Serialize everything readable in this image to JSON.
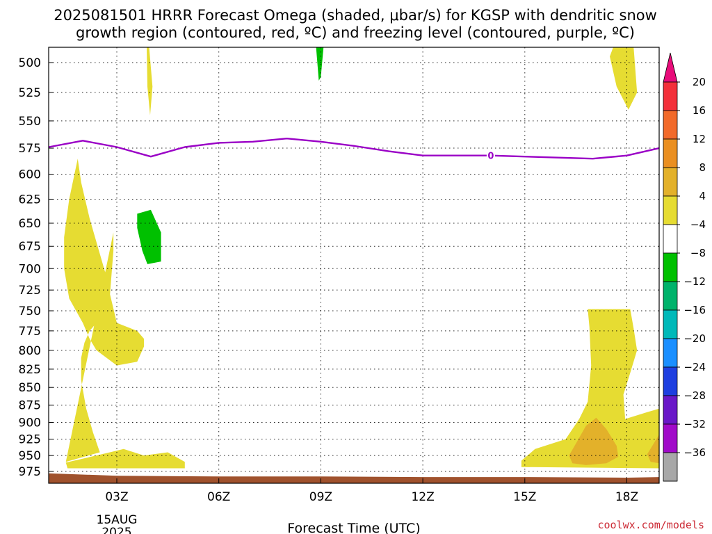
{
  "chart_data": {
    "type": "heatmap",
    "title_line1": "2025081501 HRRR Forecast Omega (shaded, μbar/s) for KGSP with dendritic snow",
    "title_line2": "growth region (contoured, red, ºC) and freezing level (contoured, purple, ºC)",
    "xlabel": "Forecast Time (UTC)",
    "x_ticks": [
      {
        "hour": 3,
        "label": "03Z"
      },
      {
        "hour": 6,
        "label": "06Z"
      },
      {
        "hour": 9,
        "label": "09Z"
      },
      {
        "hour": 12,
        "label": "12Z"
      },
      {
        "hour": 15,
        "label": "15Z"
      },
      {
        "hour": 18,
        "label": "18Z"
      }
    ],
    "date_label_line1": "15AUG",
    "date_label_line2": "2025",
    "xlim": [
      1,
      19
    ],
    "ylim": [
      970,
      485
    ],
    "y_scale": "log-pressure (inverted)",
    "y_ticks": [
      500,
      525,
      550,
      575,
      600,
      625,
      650,
      675,
      700,
      725,
      750,
      775,
      800,
      825,
      850,
      875,
      900,
      925,
      950,
      975
    ],
    "grid": true,
    "colorbar": {
      "placement": "right",
      "labels": [
        "20",
        "16",
        "12",
        "8",
        "4",
        "−4",
        "−8",
        "−12",
        "−16",
        "−20",
        "−24",
        "−28",
        "−32",
        "−36"
      ],
      "colors": [
        "#e80c7a",
        "#f3303a",
        "#f26a2a",
        "#ea8f21",
        "#e3b12a",
        "#e6dc32",
        "#ffffff",
        "#00c000",
        "#00b36b",
        "#00b9b9",
        "#1a8fff",
        "#1e3fe0",
        "#6a18c8",
        "#a10bc9",
        "#a8a8a8",
        "#000000"
      ]
    },
    "omega_regions": [
      {
        "name": "rising 4-8 left column",
        "color": "#e6dc32",
        "points": [
          [
            1.55,
            970
          ],
          [
            1.5,
            961
          ],
          [
            2.4,
            950
          ],
          [
            3.2,
            940
          ],
          [
            3.8,
            950
          ],
          [
            4.5,
            945
          ],
          [
            5,
            960
          ],
          [
            5,
            970
          ]
        ]
      },
      {
        "name": "rising 4-8 left column body",
        "color": "#e6dc32",
        "points": [
          [
            1.5,
            960
          ],
          [
            2.5,
            945
          ],
          [
            2.3,
            915
          ],
          [
            2.1,
            880
          ],
          [
            1.95,
            840
          ],
          [
            1.95,
            810
          ],
          [
            2.05,
            790
          ],
          [
            2.2,
            775
          ],
          [
            2.5,
            760
          ],
          [
            2.6,
            745
          ],
          [
            2.7,
            710
          ],
          [
            2.2,
            645
          ],
          [
            1.95,
            608
          ],
          [
            1.85,
            585
          ],
          [
            1.6,
            625
          ],
          [
            1.45,
            665
          ],
          [
            1.45,
            700
          ],
          [
            1.6,
            735
          ],
          [
            2.0,
            765
          ],
          [
            2.2,
            785
          ],
          [
            2.4,
            800
          ],
          [
            3.0,
            820
          ],
          [
            3.6,
            815
          ],
          [
            3.8,
            795
          ],
          [
            3.8,
            785
          ],
          [
            3.6,
            775
          ],
          [
            3.0,
            765
          ],
          [
            2.8,
            730
          ],
          [
            2.9,
            680
          ],
          [
            2.9,
            660
          ]
        ]
      },
      {
        "name": "rising 4-8 upper left streak",
        "color": "#e6dc32",
        "points": [
          [
            3.88,
            485
          ],
          [
            3.95,
            485
          ],
          [
            4.05,
            520
          ],
          [
            3.98,
            545
          ],
          [
            3.9,
            520
          ]
        ]
      },
      {
        "name": "rising 4-8 top right",
        "color": "#e6dc32",
        "points": [
          [
            17.6,
            485
          ],
          [
            18.2,
            485
          ],
          [
            18.3,
            525
          ],
          [
            18.05,
            540
          ],
          [
            17.7,
            520
          ],
          [
            17.5,
            495
          ]
        ]
      },
      {
        "name": "sinking -8 upper left",
        "color": "#00c000",
        "points": [
          [
            3.6,
            640
          ],
          [
            4.0,
            636
          ],
          [
            4.3,
            660
          ],
          [
            4.3,
            692
          ],
          [
            3.9,
            695
          ],
          [
            3.75,
            680
          ],
          [
            3.6,
            655
          ]
        ]
      },
      {
        "name": "sinking -8 top center",
        "color": "#00c000",
        "points": [
          [
            8.86,
            485
          ],
          [
            9.08,
            485
          ],
          [
            9.0,
            512
          ],
          [
            8.94,
            515
          ]
        ]
      },
      {
        "name": "rising 4-8 lower right",
        "color": "#e6dc32",
        "points": [
          [
            14.9,
            968
          ],
          [
            14.9,
            958
          ],
          [
            15.3,
            940
          ],
          [
            16.2,
            925
          ],
          [
            16.6,
            895
          ],
          [
            16.85,
            870
          ],
          [
            16.95,
            820
          ],
          [
            16.9,
            770
          ],
          [
            16.85,
            748
          ],
          [
            18.1,
            748
          ],
          [
            18.2,
            772
          ],
          [
            18.3,
            800
          ],
          [
            18.1,
            830
          ],
          [
            17.9,
            860
          ],
          [
            17.95,
            895
          ],
          [
            18.6,
            885
          ],
          [
            19,
            880
          ],
          [
            19,
            970
          ]
        ]
      },
      {
        "name": "rising 8-12 lower right",
        "color": "#e3b12a",
        "points": [
          [
            16.3,
            950
          ],
          [
            16.5,
            932
          ],
          [
            16.8,
            905
          ],
          [
            17.1,
            893
          ],
          [
            17.4,
            910
          ],
          [
            17.7,
            935
          ],
          [
            17.75,
            952
          ],
          [
            17.4,
            962
          ],
          [
            16.8,
            965
          ],
          [
            16.4,
            962
          ]
        ]
      },
      {
        "name": "rising 8-12 far lower right",
        "color": "#e3b12a",
        "points": [
          [
            18.6,
            948
          ],
          [
            18.75,
            935
          ],
          [
            19,
            918
          ],
          [
            19,
            962
          ],
          [
            18.7,
            960
          ]
        ]
      }
    ],
    "freezing_level_line": {
      "color": "#9a00c6",
      "label": "0",
      "label_hour": 14,
      "points": [
        [
          1,
          574
        ],
        [
          2,
          568
        ],
        [
          3,
          574
        ],
        [
          4,
          583
        ],
        [
          5,
          574
        ],
        [
          6,
          570
        ],
        [
          7,
          569
        ],
        [
          8,
          566
        ],
        [
          9,
          569
        ],
        [
          10,
          573
        ],
        [
          11,
          578
        ],
        [
          12,
          582
        ],
        [
          13,
          582
        ],
        [
          14,
          582
        ],
        [
          15,
          583
        ],
        [
          16,
          584
        ],
        [
          17,
          585
        ],
        [
          18,
          582
        ],
        [
          19,
          575
        ]
      ]
    },
    "ground_line": {
      "color": "#a0522d",
      "points": [
        [
          1,
          978
        ],
        [
          3,
          982
        ],
        [
          6,
          983
        ],
        [
          9,
          983
        ],
        [
          12,
          984
        ],
        [
          15,
          984
        ],
        [
          18,
          985
        ],
        [
          19,
          984
        ]
      ]
    }
  },
  "footer": {
    "credit": "coolwx.com/models"
  }
}
